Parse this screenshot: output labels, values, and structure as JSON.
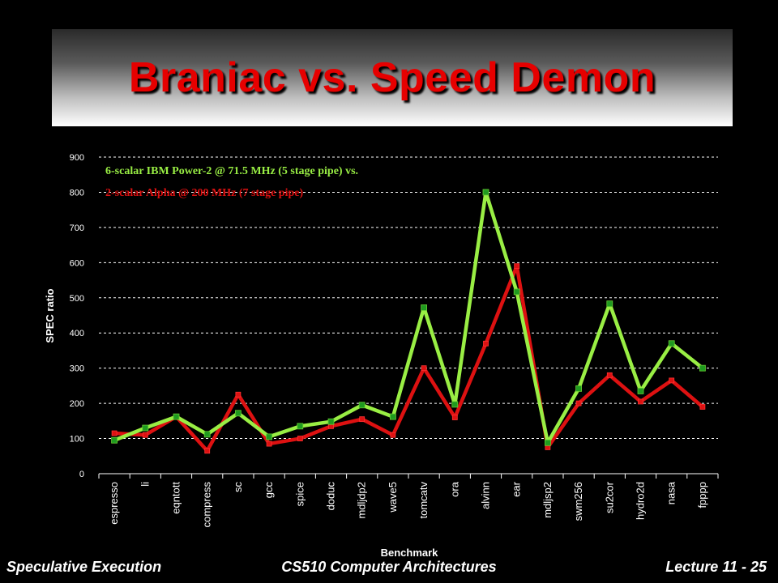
{
  "slide": {
    "title": "Braniac vs. Speed Demon",
    "footer_left": "Speculative Execution",
    "footer_center": "CS510 Computer Architectures",
    "footer_right": "Lecture 11 - 25"
  },
  "chart_data": {
    "type": "line",
    "title": "",
    "xlabel": "Benchmark",
    "ylabel": "SPEC ratio",
    "ylim": [
      0,
      900
    ],
    "yticks": [
      0,
      100,
      200,
      300,
      400,
      500,
      600,
      700,
      800,
      900
    ],
    "grid": true,
    "categories": [
      "espresso",
      "li",
      "eqntott",
      "compress",
      "sc",
      "gcc",
      "spice",
      "doduc",
      "mdljdp2",
      "wave5",
      "tomcatv",
      "ora",
      "alvinn",
      "ear",
      "mdljsp2",
      "swm256",
      "su2cor",
      "hydro2d",
      "nasa",
      "fpppp"
    ],
    "series": [
      {
        "name": "6-scalar IBM Power-2 @ 71.5 MHz (5 stage pipe) vs.",
        "color": "#99ee44",
        "marker_color": "#1f9a1f",
        "values": [
          95,
          130,
          162,
          112,
          172,
          105,
          135,
          148,
          195,
          162,
          472,
          197,
          800,
          517,
          88,
          242,
          483,
          235,
          370,
          300
        ]
      },
      {
        "name": "2-scalar Alpha @ 200 MHz (7 stage pipe)",
        "color": "#dd1111",
        "marker_color": "#dd1111",
        "values": [
          115,
          110,
          162,
          65,
          225,
          85,
          100,
          135,
          155,
          110,
          300,
          160,
          370,
          590,
          75,
          200,
          280,
          205,
          265,
          190
        ]
      }
    ]
  }
}
